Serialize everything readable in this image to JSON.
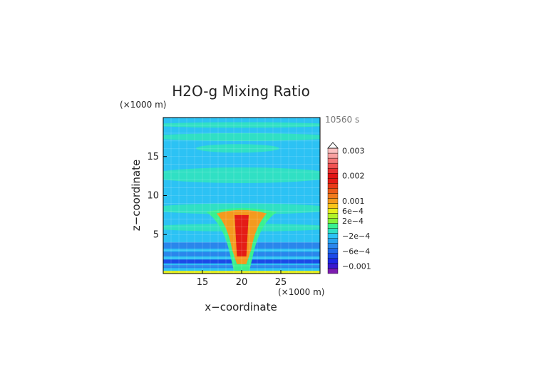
{
  "chart_data": {
    "type": "heatmap",
    "title": "H2O-g Mixing Ratio",
    "timestamp": "10560 s",
    "xlabel": "x−coordinate",
    "ylabel": "z−coordinate",
    "x_unit": "(×1000 m)",
    "y_unit": "(×1000 m)",
    "xlim": [
      10,
      30
    ],
    "ylim": [
      0,
      20
    ],
    "x_ticks": [
      {
        "value": 15,
        "label": "15"
      },
      {
        "value": 20,
        "label": "20"
      },
      {
        "value": 25,
        "label": "25"
      }
    ],
    "y_ticks": [
      {
        "value": 5,
        "label": "5"
      },
      {
        "value": 10,
        "label": "10"
      },
      {
        "value": 15,
        "label": "15"
      }
    ],
    "grid": true,
    "colorbar": {
      "levels": [
        {
          "label": "",
          "color": "#7d1cb0"
        },
        {
          "label": "−0.001",
          "color": "#3a1ad0"
        },
        {
          "label": "",
          "color": "#1e28e6"
        },
        {
          "label": "",
          "color": "#1c4ae8"
        },
        {
          "label": "−6e−4",
          "color": "#2068ea"
        },
        {
          "label": "",
          "color": "#2a86ec"
        },
        {
          "label": "",
          "color": "#28a4f0"
        },
        {
          "label": "−2e−4",
          "color": "#2cc2f4"
        },
        {
          "label": "",
          "color": "#30e0c4"
        },
        {
          "label": "",
          "color": "#38f090"
        },
        {
          "label": "2e−4",
          "color": "#86f23a"
        },
        {
          "label": "",
          "color": "#b0f22a"
        },
        {
          "label": "6e−4",
          "color": "#e6ee1e"
        },
        {
          "label": "",
          "color": "#f8c41a"
        },
        {
          "label": "0.001",
          "color": "#f49a1e"
        },
        {
          "label": "",
          "color": "#f07a1c"
        },
        {
          "label": "",
          "color": "#ec5c1a"
        },
        {
          "label": "",
          "color": "#e83a18"
        },
        {
          "label": "",
          "color": "#e41c16"
        },
        {
          "label": "0.002",
          "color": "#e01414"
        },
        {
          "label": "",
          "color": "#e83030"
        },
        {
          "label": "",
          "color": "#f05252"
        },
        {
          "label": "",
          "color": "#f47878"
        },
        {
          "label": "",
          "color": "#f8a0a0"
        },
        {
          "label": "0.003",
          "color": "#fcc0c0"
        }
      ]
    },
    "field_colors": {
      "background": "#2cc2f4",
      "band": "#30e0c4",
      "low": "#2a86ec",
      "deep": "#1c4ae8",
      "plume_edge": "#38f090",
      "plume_mid": "#f49a1e",
      "plume_core": "#e41c16",
      "surface": "#e6ee1e"
    }
  }
}
